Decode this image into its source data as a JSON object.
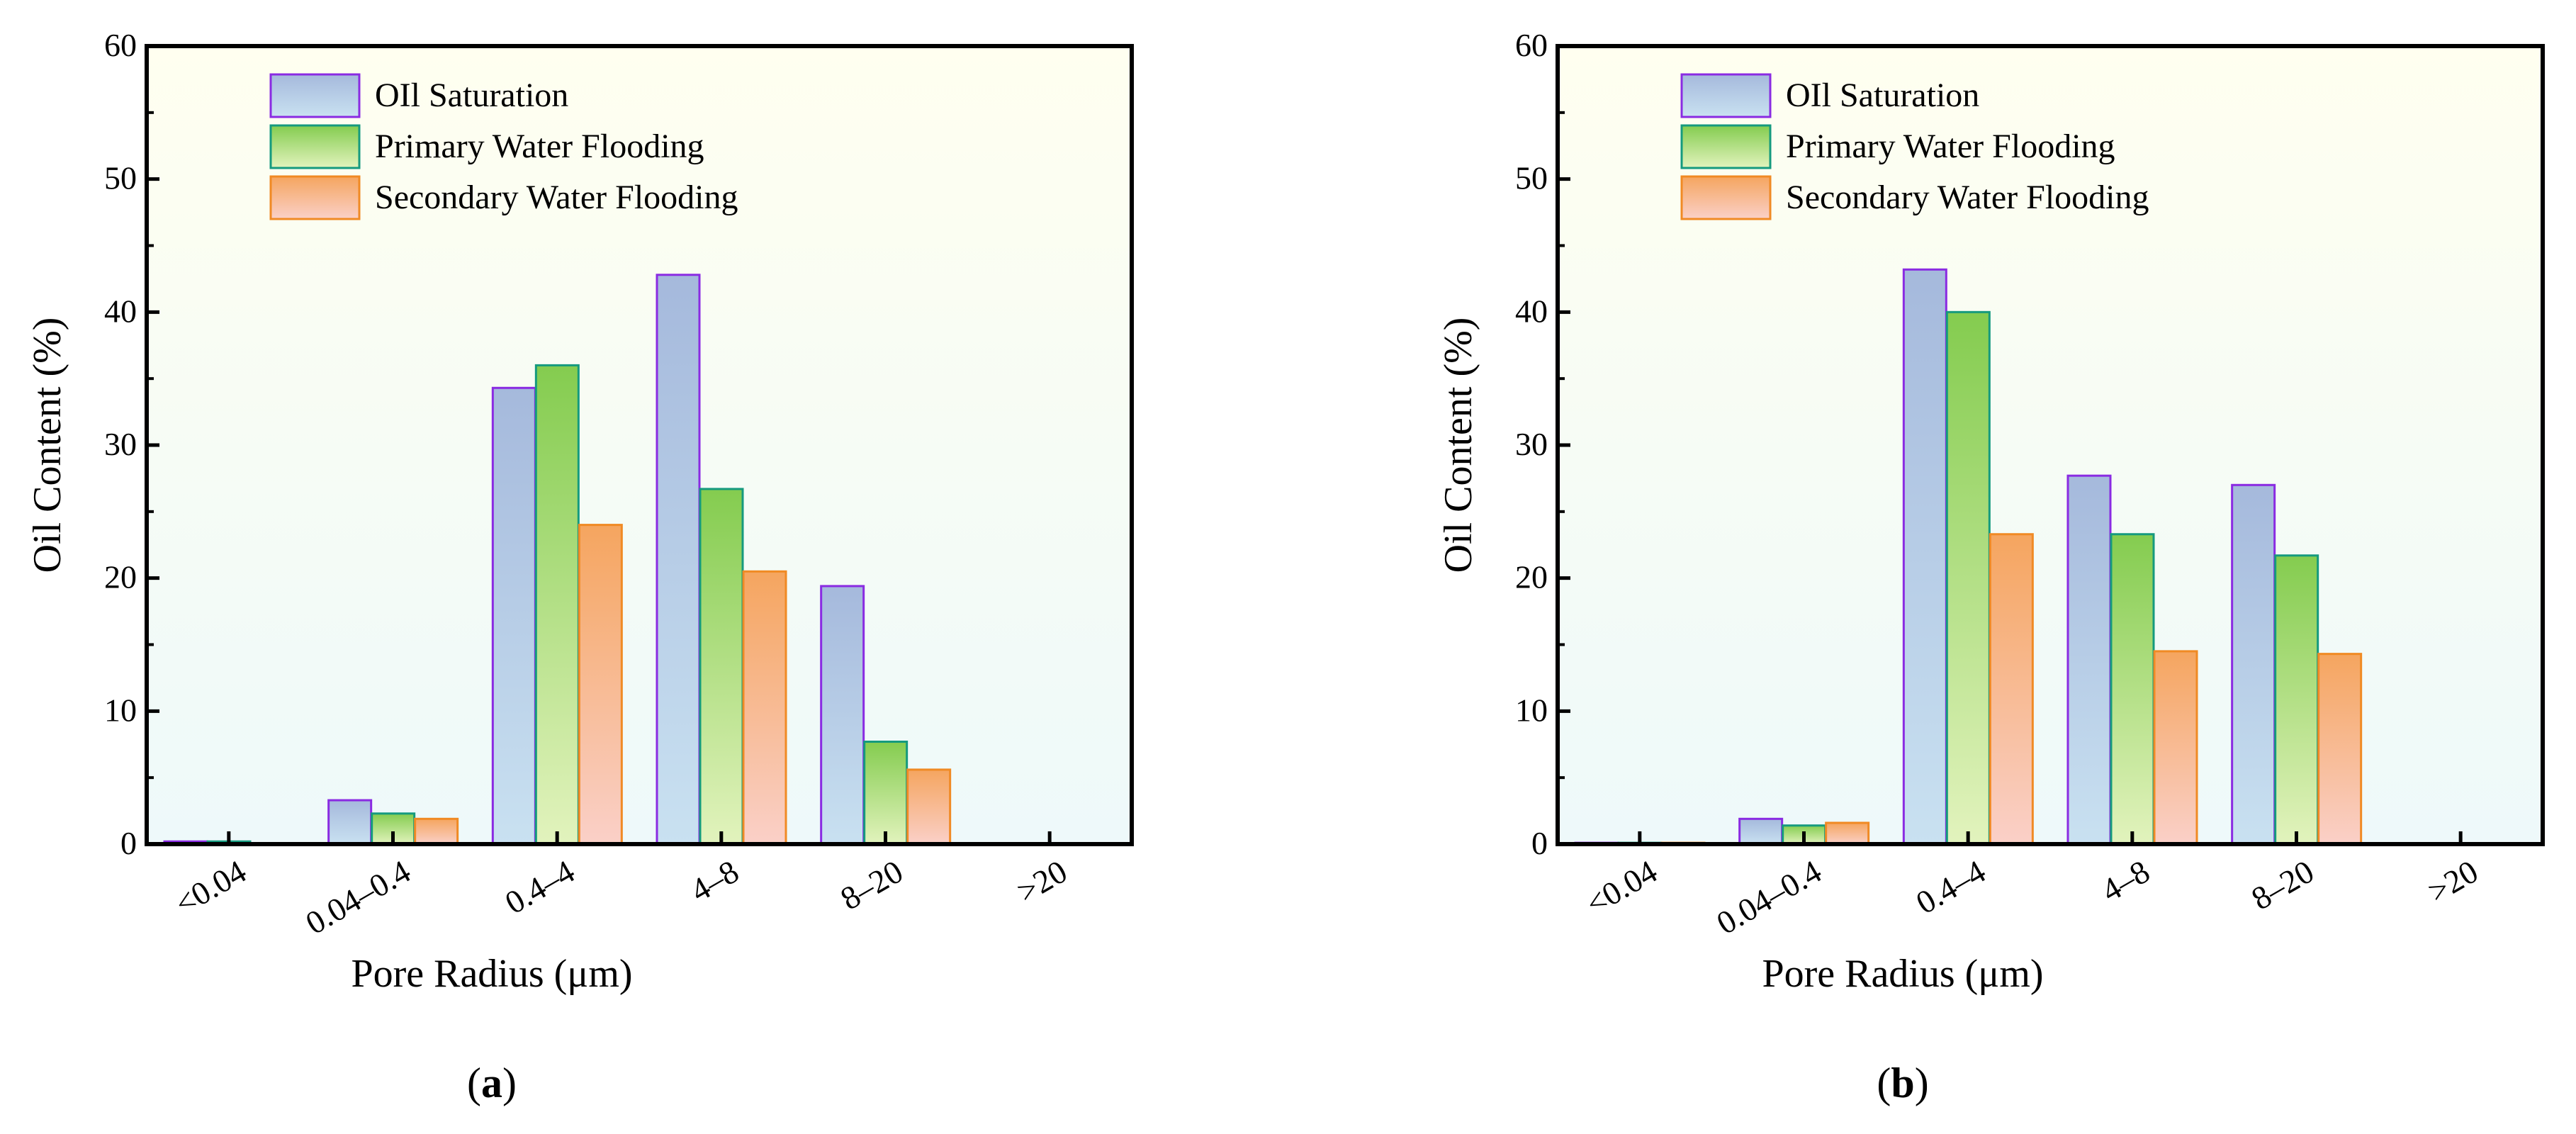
{
  "figure": {
    "panels": [
      {
        "id": "a",
        "panel_label": "a",
        "panel_label_open": "(",
        "panel_label_close": ")",
        "chart_data": {
          "type": "bar",
          "title": "",
          "xlabel": "Pore Radius (μm)",
          "ylabel": "Oil Content (%)",
          "ylim": [
            0,
            60
          ],
          "yticks": [
            0,
            10,
            20,
            30,
            40,
            50,
            60
          ],
          "ytick_labels": [
            "0",
            "10",
            "20",
            "30",
            "40",
            "50",
            "60"
          ],
          "categories": [
            "<0.04",
            "0.04–0.4",
            "0.4–4",
            "4–8",
            "8–20",
            ">20"
          ],
          "series": [
            {
              "name": "OIl Saturation",
              "values": [
                0.2,
                3.3,
                34.3,
                42.8,
                19.4,
                0
              ]
            },
            {
              "name": "Primary Water Flooding",
              "values": [
                0.2,
                2.3,
                36.0,
                26.7,
                7.7,
                0
              ]
            },
            {
              "name": "Secondary Water Flooding",
              "values": [
                0,
                1.9,
                24.0,
                20.5,
                5.6,
                0
              ]
            }
          ],
          "legend_position": "top-left"
        }
      },
      {
        "id": "b",
        "panel_label": "b",
        "panel_label_open": "(",
        "panel_label_close": ")",
        "chart_data": {
          "type": "bar",
          "title": "",
          "xlabel": "Pore Radius (μm)",
          "ylabel": "Oil Content (%)",
          "ylim": [
            0,
            60
          ],
          "yticks": [
            0,
            10,
            20,
            30,
            40,
            50,
            60
          ],
          "ytick_labels": [
            "0",
            "10",
            "20",
            "30",
            "40",
            "50",
            "60"
          ],
          "categories": [
            "<0.04",
            "0.04–0.4",
            "0.4–4",
            "4–8",
            "8–20",
            ">20"
          ],
          "series": [
            {
              "name": "OIl Saturation",
              "values": [
                0.1,
                1.9,
                43.2,
                27.7,
                27.0,
                0
              ]
            },
            {
              "name": "Primary Water Flooding",
              "values": [
                0.1,
                1.4,
                40.0,
                23.3,
                21.7,
                0
              ]
            },
            {
              "name": "Secondary Water Flooding",
              "values": [
                0.1,
                1.6,
                23.3,
                14.5,
                14.3,
                0
              ]
            }
          ],
          "legend_position": "top-left"
        }
      }
    ],
    "colors": {
      "plot_bg_top": "#fffff0",
      "plot_bg_bottom": "#eef9fa",
      "axis": "#000000",
      "series": [
        {
          "fill_top": "#a5b9dc",
          "fill_bottom": "#c9e1f1",
          "stroke": "#8a2be2"
        },
        {
          "fill_top": "#84cc4f",
          "fill_bottom": "#e2f3bd",
          "stroke": "#159a7e"
        },
        {
          "fill_top": "#f5a55f",
          "fill_bottom": "#fad0c8",
          "stroke": "#f08a24"
        }
      ]
    }
  }
}
